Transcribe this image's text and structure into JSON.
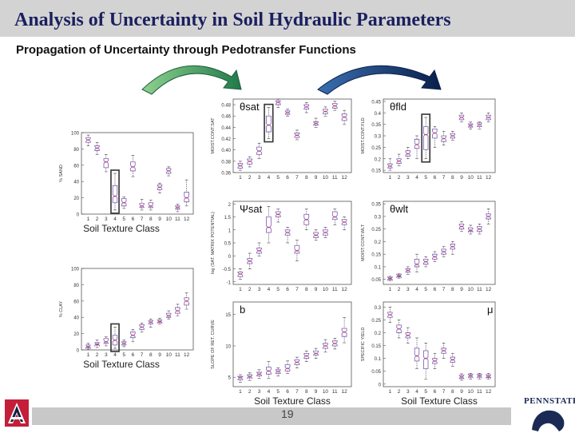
{
  "header": {
    "title": "Analysis of Uncertainty in Soil Hydraulic Parameters",
    "subtitle": "Propagation of Uncertainty through Pedotransfer Functions"
  },
  "footer": {
    "page_number": "19",
    "right_logo_text": "PENNSTATE"
  },
  "colors": {
    "title_bar": "#d3d3d3",
    "title_text": "#1a1f5e",
    "green_arrow": "#2e8b57",
    "blue_arrow": "#0d2b5c",
    "box_stroke": "#7a5ab0",
    "median": "#d6336c",
    "highlight": "#333333"
  },
  "chart_data": [
    {
      "type": "box",
      "name": "sand",
      "ylabel": "% SAND",
      "xlabel": "Soil Texture Class",
      "categories": [
        "1",
        "2",
        "3",
        "4",
        "5",
        "6",
        "7",
        "8",
        "9",
        "10",
        "11",
        "12"
      ],
      "yticks": [
        "0",
        "20",
        "40",
        "60",
        "80",
        "100"
      ],
      "ylim": [
        0,
        100
      ],
      "highlight_category": "4",
      "boxes": [
        {
          "min": 84,
          "q1": 88,
          "median": 91,
          "q3": 94,
          "max": 97
        },
        {
          "min": 73,
          "q1": 78,
          "median": 81,
          "q3": 84,
          "max": 88
        },
        {
          "min": 52,
          "q1": 57,
          "median": 64,
          "q3": 68,
          "max": 73
        },
        {
          "min": 5,
          "q1": 14,
          "median": 22,
          "q3": 35,
          "max": 50
        },
        {
          "min": 7,
          "q1": 10,
          "median": 14,
          "q3": 19,
          "max": 21
        },
        {
          "min": 46,
          "q1": 53,
          "median": 58,
          "q3": 64,
          "max": 72
        },
        {
          "min": 5,
          "q1": 8,
          "median": 10,
          "q3": 13,
          "max": 18
        },
        {
          "min": 5,
          "q1": 8,
          "median": 10,
          "q3": 14,
          "max": 17
        },
        {
          "min": 26,
          "q1": 30,
          "median": 33,
          "q3": 36,
          "max": 38
        },
        {
          "min": 47,
          "q1": 50,
          "median": 53,
          "q3": 56,
          "max": 58
        },
        {
          "min": 3,
          "q1": 6,
          "median": 8,
          "q3": 10,
          "max": 12
        },
        {
          "min": 10,
          "q1": 15,
          "median": 20,
          "q3": 27,
          "max": 42
        }
      ]
    },
    {
      "type": "box",
      "name": "clay",
      "ylabel": "% CLAY",
      "xlabel": "Soil Texture Class",
      "categories": [
        "1",
        "2",
        "3",
        "4",
        "5",
        "6",
        "7",
        "8",
        "9",
        "10",
        "11",
        "12"
      ],
      "yticks": [
        "0",
        "20",
        "40",
        "60",
        "80",
        "100"
      ],
      "ylim": [
        0,
        100
      ],
      "highlight_category": "4",
      "boxes": [
        {
          "min": 1,
          "q1": 3,
          "median": 4,
          "q3": 6,
          "max": 8
        },
        {
          "min": 3,
          "q1": 6,
          "median": 7,
          "q3": 9,
          "max": 12
        },
        {
          "min": 5,
          "q1": 8,
          "median": 10,
          "q3": 14,
          "max": 16
        },
        {
          "min": 2,
          "q1": 6,
          "median": 12,
          "q3": 18,
          "max": 28
        },
        {
          "min": 4,
          "q1": 6,
          "median": 8,
          "q3": 10,
          "max": 12
        },
        {
          "min": 10,
          "q1": 15,
          "median": 18,
          "q3": 22,
          "max": 25
        },
        {
          "min": 22,
          "q1": 25,
          "median": 28,
          "q3": 31,
          "max": 33
        },
        {
          "min": 28,
          "q1": 32,
          "median": 34,
          "q3": 36,
          "max": 38
        },
        {
          "min": 32,
          "q1": 34,
          "median": 35,
          "q3": 37,
          "max": 39
        },
        {
          "min": 38,
          "q1": 40,
          "median": 42,
          "q3": 45,
          "max": 48
        },
        {
          "min": 42,
          "q1": 45,
          "median": 48,
          "q3": 52,
          "max": 56
        },
        {
          "min": 50,
          "q1": 55,
          "median": 60,
          "q3": 64,
          "max": 70
        }
      ]
    },
    {
      "type": "box",
      "name": "theta_sat",
      "label": "θsat",
      "ylabel": "MOIST.CONT.SAT",
      "categories": [
        "1",
        "2",
        "3",
        "4",
        "5",
        "6",
        "7",
        "8",
        "9",
        "10",
        "11",
        "12"
      ],
      "yticks": [
        "0.36",
        "0.38",
        "0.40",
        "0.42",
        "0.44",
        "0.46",
        "0.48"
      ],
      "ylim": [
        0.36,
        0.49
      ],
      "highlight_category": "4",
      "boxes": [
        {
          "min": 0.364,
          "q1": 0.368,
          "median": 0.372,
          "q3": 0.376,
          "max": 0.38
        },
        {
          "min": 0.37,
          "q1": 0.375,
          "median": 0.38,
          "q3": 0.384,
          "max": 0.388
        },
        {
          "min": 0.385,
          "q1": 0.392,
          "median": 0.398,
          "q3": 0.405,
          "max": 0.412
        },
        {
          "min": 0.42,
          "q1": 0.432,
          "median": 0.444,
          "q3": 0.46,
          "max": 0.475
        },
        {
          "min": 0.475,
          "q1": 0.48,
          "median": 0.484,
          "q3": 0.487,
          "max": 0.49
        },
        {
          "min": 0.46,
          "q1": 0.463,
          "median": 0.466,
          "q3": 0.469,
          "max": 0.472
        },
        {
          "min": 0.418,
          "q1": 0.422,
          "median": 0.426,
          "q3": 0.43,
          "max": 0.435
        },
        {
          "min": 0.466,
          "q1": 0.472,
          "median": 0.476,
          "q3": 0.48,
          "max": 0.484
        },
        {
          "min": 0.44,
          "q1": 0.444,
          "median": 0.447,
          "q3": 0.45,
          "max": 0.456
        },
        {
          "min": 0.46,
          "q1": 0.464,
          "median": 0.468,
          "q3": 0.472,
          "max": 0.476
        },
        {
          "min": 0.47,
          "q1": 0.474,
          "median": 0.478,
          "q3": 0.482,
          "max": 0.486
        },
        {
          "min": 0.445,
          "q1": 0.452,
          "median": 0.458,
          "q3": 0.464,
          "max": 0.47
        }
      ]
    },
    {
      "type": "box",
      "name": "theta_fld",
      "label": "θfld",
      "ylabel": "MOIST.CONT.FLD",
      "categories": [
        "1",
        "2",
        "3",
        "4",
        "5",
        "6",
        "7",
        "8",
        "9",
        "10",
        "11",
        "12"
      ],
      "yticks": [
        "0.15",
        "0.2",
        "0.25",
        "0.3",
        "0.35",
        "0.4",
        "0.45"
      ],
      "ylim": [
        0.14,
        0.46
      ],
      "highlight_category": "5",
      "boxes": [
        {
          "min": 0.15,
          "q1": 0.16,
          "median": 0.168,
          "q3": 0.178,
          "max": 0.2
        },
        {
          "min": 0.17,
          "q1": 0.18,
          "median": 0.19,
          "q3": 0.2,
          "max": 0.22
        },
        {
          "min": 0.2,
          "q1": 0.212,
          "median": 0.222,
          "q3": 0.235,
          "max": 0.25
        },
        {
          "min": 0.2,
          "q1": 0.245,
          "median": 0.262,
          "q3": 0.285,
          "max": 0.3
        },
        {
          "min": 0.2,
          "q1": 0.24,
          "median": 0.305,
          "q3": 0.34,
          "max": 0.38
        },
        {
          "min": 0.25,
          "q1": 0.29,
          "median": 0.312,
          "q3": 0.33,
          "max": 0.34
        },
        {
          "min": 0.26,
          "q1": 0.275,
          "median": 0.288,
          "q3": 0.3,
          "max": 0.32
        },
        {
          "min": 0.28,
          "q1": 0.29,
          "median": 0.3,
          "q3": 0.31,
          "max": 0.32
        },
        {
          "min": 0.36,
          "q1": 0.37,
          "median": 0.38,
          "q3": 0.39,
          "max": 0.4
        },
        {
          "min": 0.33,
          "q1": 0.338,
          "median": 0.345,
          "q3": 0.352,
          "max": 0.36
        },
        {
          "min": 0.33,
          "q1": 0.34,
          "median": 0.348,
          "q3": 0.356,
          "max": 0.36
        },
        {
          "min": 0.36,
          "q1": 0.37,
          "median": 0.38,
          "q3": 0.39,
          "max": 0.4
        }
      ]
    },
    {
      "type": "box",
      "name": "psi_sat",
      "label": "Ψsat",
      "ylabel": "log (SAT. MATRIX POTENTIAL)",
      "categories": [
        "1",
        "2",
        "3",
        "4",
        "5",
        "6",
        "7",
        "8",
        "9",
        "10",
        "11",
        "12"
      ],
      "yticks": [
        "-1",
        "-0.5",
        "0",
        "0.5",
        "1",
        "1.5",
        "2"
      ],
      "ylim": [
        -1.1,
        2.1
      ],
      "boxes": [
        {
          "min": -0.9,
          "q1": -0.8,
          "median": -0.7,
          "q3": -0.62,
          "max": -0.5
        },
        {
          "min": -0.5,
          "q1": -0.3,
          "median": -0.2,
          "q3": -0.1,
          "max": 0.1
        },
        {
          "min": 0.0,
          "q1": 0.1,
          "median": 0.2,
          "q3": 0.3,
          "max": 0.5
        },
        {
          "min": 0.5,
          "q1": 0.9,
          "median": 1.1,
          "q3": 1.5,
          "max": 1.9
        },
        {
          "min": 1.3,
          "q1": 1.5,
          "median": 1.6,
          "q3": 1.7,
          "max": 1.8
        },
        {
          "min": 0.5,
          "q1": 0.8,
          "median": 0.9,
          "q3": 1.0,
          "max": 1.1
        },
        {
          "min": -0.2,
          "q1": 0.1,
          "median": 0.2,
          "q3": 0.4,
          "max": 0.6
        },
        {
          "min": 1.0,
          "q1": 1.2,
          "median": 1.4,
          "q3": 1.6,
          "max": 1.8
        },
        {
          "min": 0.6,
          "q1": 0.7,
          "median": 0.8,
          "q3": 0.9,
          "max": 1.0
        },
        {
          "min": 0.7,
          "q1": 0.8,
          "median": 0.9,
          "q3": 1.0,
          "max": 1.1
        },
        {
          "min": 1.2,
          "q1": 1.4,
          "median": 1.5,
          "q3": 1.7,
          "max": 1.8
        },
        {
          "min": 1.0,
          "q1": 1.2,
          "median": 1.3,
          "q3": 1.4,
          "max": 1.5
        }
      ]
    },
    {
      "type": "box",
      "name": "theta_wlt",
      "label": "θwlt",
      "ylabel": "MOIST.CONT.WLT",
      "categories": [
        "1",
        "2",
        "3",
        "4",
        "5",
        "6",
        "7",
        "8",
        "9",
        "10",
        "11",
        "12"
      ],
      "yticks": [
        "0.05",
        "0.1",
        "0.15",
        "0.2",
        "0.25",
        "0.3",
        "0.35"
      ],
      "ylim": [
        0.03,
        0.36
      ],
      "boxes": [
        {
          "min": 0.045,
          "q1": 0.05,
          "median": 0.053,
          "q3": 0.058,
          "max": 0.062
        },
        {
          "min": 0.055,
          "q1": 0.06,
          "median": 0.064,
          "q3": 0.068,
          "max": 0.072
        },
        {
          "min": 0.07,
          "q1": 0.078,
          "median": 0.085,
          "q3": 0.092,
          "max": 0.1
        },
        {
          "min": 0.08,
          "q1": 0.1,
          "median": 0.11,
          "q3": 0.13,
          "max": 0.15
        },
        {
          "min": 0.1,
          "q1": 0.11,
          "median": 0.12,
          "q3": 0.13,
          "max": 0.14
        },
        {
          "min": 0.12,
          "q1": 0.13,
          "median": 0.14,
          "q3": 0.15,
          "max": 0.16
        },
        {
          "min": 0.14,
          "q1": 0.15,
          "median": 0.16,
          "q3": 0.17,
          "max": 0.18
        },
        {
          "min": 0.15,
          "q1": 0.17,
          "median": 0.18,
          "q3": 0.19,
          "max": 0.2
        },
        {
          "min": 0.24,
          "q1": 0.25,
          "median": 0.26,
          "q3": 0.27,
          "max": 0.28
        },
        {
          "min": 0.23,
          "q1": 0.24,
          "median": 0.245,
          "q3": 0.255,
          "max": 0.265
        },
        {
          "min": 0.23,
          "q1": 0.24,
          "median": 0.25,
          "q3": 0.26,
          "max": 0.27
        },
        {
          "min": 0.27,
          "q1": 0.29,
          "median": 0.3,
          "q3": 0.31,
          "max": 0.33
        }
      ]
    },
    {
      "type": "box",
      "name": "b",
      "label": "b",
      "ylabel": "SLOPE OF RET. CURVE",
      "xlabel": "Soil Texture Class",
      "categories": [
        "1",
        "2",
        "3",
        "4",
        "5",
        "6",
        "7",
        "8",
        "9",
        "10",
        "11",
        "12"
      ],
      "yticks": [
        "5",
        "10",
        "15"
      ],
      "ylim": [
        3.5,
        17
      ],
      "boxes": [
        {
          "min": 4.2,
          "q1": 4.6,
          "median": 4.9,
          "q3": 5.1,
          "max": 5.4
        },
        {
          "min": 4.5,
          "q1": 4.9,
          "median": 5.1,
          "q3": 5.4,
          "max": 5.7
        },
        {
          "min": 4.8,
          "q1": 5.2,
          "median": 5.5,
          "q3": 5.8,
          "max": 6.2
        },
        {
          "min": 4.8,
          "q1": 5.5,
          "median": 6.0,
          "q3": 6.6,
          "max": 7.5
        },
        {
          "min": 5.2,
          "q1": 5.6,
          "median": 5.9,
          "q3": 6.2,
          "max": 6.5
        },
        {
          "min": 5.6,
          "q1": 6.0,
          "median": 6.4,
          "q3": 7.0,
          "max": 7.6
        },
        {
          "min": 6.5,
          "q1": 7.0,
          "median": 7.4,
          "q3": 7.8,
          "max": 8.2
        },
        {
          "min": 7.5,
          "q1": 8.0,
          "median": 8.4,
          "q3": 8.8,
          "max": 9.2
        },
        {
          "min": 8.0,
          "q1": 8.5,
          "median": 8.8,
          "q3": 9.2,
          "max": 9.6
        },
        {
          "min": 9.0,
          "q1": 9.6,
          "median": 10.0,
          "q3": 10.4,
          "max": 11.0
        },
        {
          "min": 9.5,
          "q1": 10.0,
          "median": 10.4,
          "q3": 10.8,
          "max": 11.2
        },
        {
          "min": 10.5,
          "q1": 11.5,
          "median": 12.2,
          "q3": 12.8,
          "max": 14.5
        }
      ]
    },
    {
      "type": "box",
      "name": "mu",
      "label": "μ",
      "ylabel": "SPECIFIC YIELD",
      "xlabel": "Soil Texture Class",
      "categories": [
        "1",
        "2",
        "3",
        "4",
        "5",
        "6",
        "7",
        "8",
        "9",
        "10",
        "11",
        "12"
      ],
      "yticks": [
        "0",
        "0.05",
        "0.1",
        "0.15",
        "0.2",
        "0.25",
        "0.3"
      ],
      "ylim": [
        -0.01,
        0.32
      ],
      "boxes": [
        {
          "min": 0.24,
          "q1": 0.26,
          "median": 0.27,
          "q3": 0.28,
          "max": 0.3
        },
        {
          "min": 0.18,
          "q1": 0.2,
          "median": 0.215,
          "q3": 0.23,
          "max": 0.25
        },
        {
          "min": 0.16,
          "q1": 0.18,
          "median": 0.19,
          "q3": 0.2,
          "max": 0.22
        },
        {
          "min": 0.06,
          "q1": 0.09,
          "median": 0.11,
          "q3": 0.14,
          "max": 0.18
        },
        {
          "min": 0.02,
          "q1": 0.06,
          "median": 0.1,
          "q3": 0.13,
          "max": 0.16
        },
        {
          "min": 0.06,
          "q1": 0.08,
          "median": 0.09,
          "q3": 0.1,
          "max": 0.12
        },
        {
          "min": 0.1,
          "q1": 0.12,
          "median": 0.13,
          "q3": 0.14,
          "max": 0.16
        },
        {
          "min": 0.07,
          "q1": 0.085,
          "median": 0.095,
          "q3": 0.105,
          "max": 0.12
        },
        {
          "min": 0.015,
          "q1": 0.022,
          "median": 0.028,
          "q3": 0.034,
          "max": 0.04
        },
        {
          "min": 0.02,
          "q1": 0.027,
          "median": 0.032,
          "q3": 0.037,
          "max": 0.042
        },
        {
          "min": 0.02,
          "q1": 0.027,
          "median": 0.032,
          "q3": 0.037,
          "max": 0.042
        },
        {
          "min": 0.02,
          "q1": 0.026,
          "median": 0.03,
          "q3": 0.036,
          "max": 0.042
        }
      ]
    }
  ]
}
